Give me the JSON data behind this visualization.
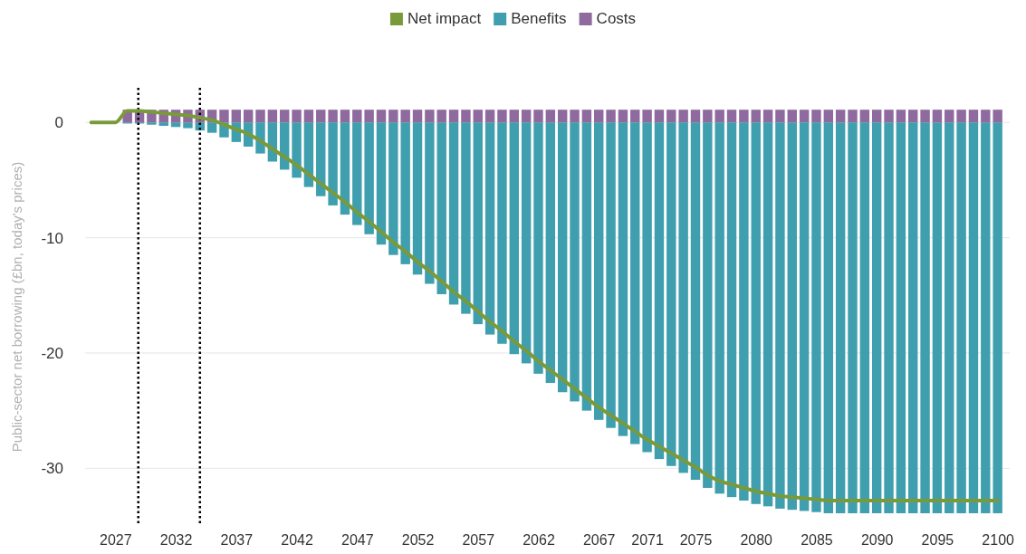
{
  "chart_data": {
    "type": "bar",
    "ylabel": "Public-sector net borrowing (£bn, today's prices)",
    "stacked": true,
    "legend": "top",
    "grid": "y",
    "xlim": [
      2024.5,
      2101
    ],
    "xticks": [
      2027,
      2032,
      2037,
      2042,
      2047,
      2052,
      2057,
      2062,
      2067,
      2071,
      2075,
      2080,
      2085,
      2090,
      2095,
      2100
    ],
    "ylim": [
      -35,
      3
    ],
    "yticks": [
      0,
      -10,
      -20,
      -30
    ],
    "ref_lines": [
      {
        "axis": "x",
        "value": 2028.9,
        "color": "#000000",
        "line_style": "dotted"
      },
      {
        "axis": "x",
        "value": 2034,
        "color": "#000000",
        "line_style": "dotted"
      }
    ],
    "series": [
      {
        "name": "Net impact",
        "type": "line",
        "color": "#7a9a3a",
        "x": [
          2025,
          2026,
          2027,
          2028,
          2029,
          2030,
          2031,
          2032,
          2033,
          2034,
          2035,
          2036,
          2037,
          2038,
          2039,
          2040,
          2041,
          2042,
          2043,
          2044,
          2045,
          2046,
          2047,
          2048,
          2049,
          2050,
          2051,
          2052,
          2053,
          2054,
          2055,
          2056,
          2057,
          2058,
          2059,
          2060,
          2061,
          2062,
          2063,
          2064,
          2065,
          2066,
          2067,
          2068,
          2069,
          2070,
          2071,
          2072,
          2073,
          2074,
          2075,
          2076,
          2077,
          2078,
          2079,
          2080,
          2081,
          2082,
          2083,
          2084,
          2085,
          2086,
          2087,
          2088,
          2089,
          2090,
          2091,
          2092,
          2093,
          2094,
          2095,
          2096,
          2097,
          2098,
          2099,
          2100
        ],
        "values": [
          0,
          0,
          0,
          1.0,
          1.0,
          0.9,
          0.8,
          0.7,
          0.6,
          0.4,
          0.2,
          -0.2,
          -0.6,
          -1.0,
          -1.6,
          -2.3,
          -3.0,
          -3.7,
          -4.5,
          -5.3,
          -6.1,
          -6.9,
          -7.8,
          -8.6,
          -9.5,
          -10.4,
          -11.2,
          -12.1,
          -12.9,
          -13.8,
          -14.7,
          -15.5,
          -16.4,
          -17.3,
          -18.1,
          -19.0,
          -19.8,
          -20.7,
          -21.5,
          -22.3,
          -23.1,
          -23.9,
          -24.7,
          -25.4,
          -26.1,
          -26.8,
          -27.5,
          -28.1,
          -28.7,
          -29.3,
          -29.9,
          -30.6,
          -31.1,
          -31.4,
          -31.7,
          -32.0,
          -32.2,
          -32.4,
          -32.5,
          -32.6,
          -32.7,
          -32.8,
          -32.8,
          -32.8,
          -32.8,
          -32.8,
          -32.8,
          -32.8,
          -32.8,
          -32.8,
          -32.8,
          -32.8,
          -32.8,
          -32.8,
          -32.8,
          -32.8
        ]
      },
      {
        "name": "Benefits",
        "color": "#3f9fae",
        "x": [
          2028,
          2029,
          2030,
          2031,
          2032,
          2033,
          2034,
          2035,
          2036,
          2037,
          2038,
          2039,
          2040,
          2041,
          2042,
          2043,
          2044,
          2045,
          2046,
          2047,
          2048,
          2049,
          2050,
          2051,
          2052,
          2053,
          2054,
          2055,
          2056,
          2057,
          2058,
          2059,
          2060,
          2061,
          2062,
          2063,
          2064,
          2065,
          2066,
          2067,
          2068,
          2069,
          2070,
          2071,
          2072,
          2073,
          2074,
          2075,
          2076,
          2077,
          2078,
          2079,
          2080,
          2081,
          2082,
          2083,
          2084,
          2085,
          2086,
          2087,
          2088,
          2089,
          2090,
          2091,
          2092,
          2093,
          2094,
          2095,
          2096,
          2097,
          2098,
          2099,
          2100
        ],
        "values": [
          -0.1,
          -0.1,
          -0.2,
          -0.3,
          -0.4,
          -0.5,
          -0.7,
          -0.9,
          -1.3,
          -1.7,
          -2.1,
          -2.7,
          -3.4,
          -4.1,
          -4.8,
          -5.6,
          -6.4,
          -7.2,
          -8.0,
          -8.9,
          -9.7,
          -10.6,
          -11.5,
          -12.3,
          -13.2,
          -14.0,
          -14.9,
          -15.8,
          -16.6,
          -17.5,
          -18.4,
          -19.2,
          -20.1,
          -20.9,
          -21.8,
          -22.6,
          -23.4,
          -24.2,
          -25.0,
          -25.8,
          -26.5,
          -27.2,
          -27.9,
          -28.6,
          -29.2,
          -29.8,
          -30.4,
          -31.0,
          -31.7,
          -32.2,
          -32.5,
          -32.8,
          -33.1,
          -33.3,
          -33.5,
          -33.6,
          -33.7,
          -33.8,
          -33.9,
          -33.9,
          -33.9,
          -33.9,
          -33.9,
          -33.9,
          -33.9,
          -33.9,
          -33.9,
          -33.9,
          -33.9,
          -33.9,
          -33.9,
          -33.9,
          -33.9
        ]
      },
      {
        "name": "Costs",
        "color": "#8e6a9e",
        "x": [
          2028,
          2029,
          2030,
          2031,
          2032,
          2033,
          2034,
          2035,
          2036,
          2037,
          2038,
          2039,
          2040,
          2041,
          2042,
          2043,
          2044,
          2045,
          2046,
          2047,
          2048,
          2049,
          2050,
          2051,
          2052,
          2053,
          2054,
          2055,
          2056,
          2057,
          2058,
          2059,
          2060,
          2061,
          2062,
          2063,
          2064,
          2065,
          2066,
          2067,
          2068,
          2069,
          2070,
          2071,
          2072,
          2073,
          2074,
          2075,
          2076,
          2077,
          2078,
          2079,
          2080,
          2081,
          2082,
          2083,
          2084,
          2085,
          2086,
          2087,
          2088,
          2089,
          2090,
          2091,
          2092,
          2093,
          2094,
          2095,
          2096,
          2097,
          2098,
          2099,
          2100
        ],
        "values": [
          1.1,
          1.1,
          1.1,
          1.1,
          1.1,
          1.1,
          1.1,
          1.1,
          1.1,
          1.1,
          1.1,
          1.1,
          1.1,
          1.1,
          1.1,
          1.1,
          1.1,
          1.1,
          1.1,
          1.1,
          1.1,
          1.1,
          1.1,
          1.1,
          1.1,
          1.1,
          1.1,
          1.1,
          1.1,
          1.1,
          1.1,
          1.1,
          1.1,
          1.1,
          1.1,
          1.1,
          1.1,
          1.1,
          1.1,
          1.1,
          1.1,
          1.1,
          1.1,
          1.1,
          1.1,
          1.1,
          1.1,
          1.1,
          1.1,
          1.1,
          1.1,
          1.1,
          1.1,
          1.1,
          1.1,
          1.1,
          1.1,
          1.1,
          1.1,
          1.1,
          1.1,
          1.1,
          1.1,
          1.1,
          1.1,
          1.1,
          1.1,
          1.1,
          1.1,
          1.1,
          1.1,
          1.1,
          1.1
        ]
      }
    ]
  }
}
